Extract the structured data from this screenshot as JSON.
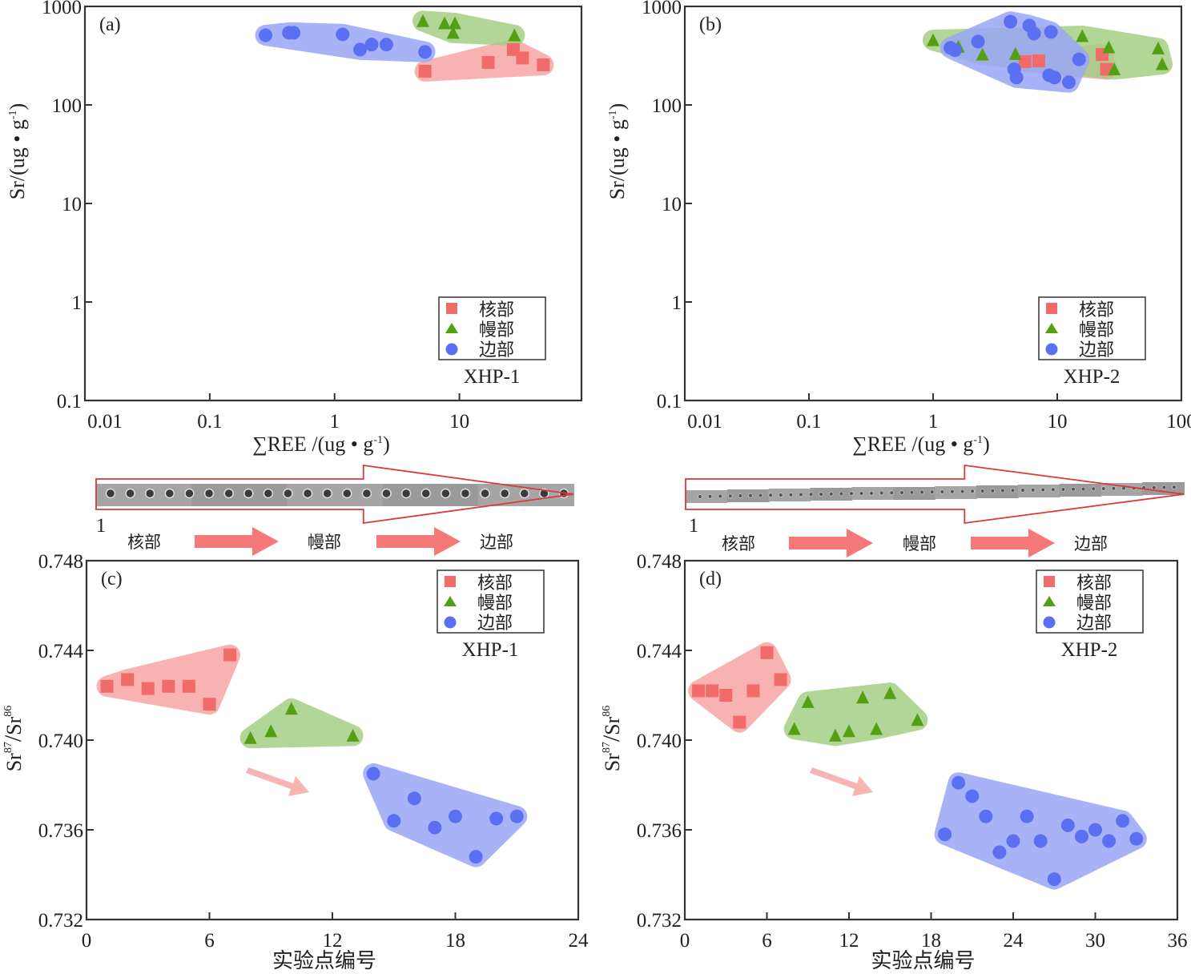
{
  "figure": {
    "zone_labels": [
      "核部",
      "幔部",
      "边部"
    ],
    "strip_start_label": "1"
  },
  "colors": {
    "core": "#f26b6b",
    "core_fill": "#f7a5a5",
    "mantle": "#55a012",
    "mantle_fill": "#a4cf85",
    "rim": "#5b6ff2",
    "rim_fill": "#9aa6f6",
    "arrow": "#f47878",
    "trend_arrow": "#f8b3b3",
    "strip_outline": "#d83a3a"
  },
  "chart_data": [
    {
      "id": "a",
      "type": "scatter",
      "panel_label": "(a)",
      "sample": "XHP-1",
      "xlabel": "∑REE /(ug • g⁻¹)",
      "ylabel": "Sr/(ug • g⁻¹)",
      "xscale": "log",
      "yscale": "log",
      "xlim": [
        0.01,
        95
      ],
      "ylim": [
        0.1,
        1000
      ],
      "xticks": [
        "0.01",
        "0.1",
        "1",
        "10"
      ],
      "yticks": [
        "0.1",
        "1",
        "10",
        "100",
        "1000"
      ],
      "legend": {
        "position": "bottom-right",
        "entries": [
          "核部",
          "幔部",
          "边部"
        ]
      },
      "series": [
        {
          "name": "核部",
          "marker": "square",
          "x": [
            5.3,
            17,
            27,
            32,
            47
          ],
          "y": [
            220,
            270,
            365,
            300,
            255
          ]
        },
        {
          "name": "幔部",
          "marker": "triangle",
          "x": [
            5.1,
            7.6,
            9.2,
            8.9,
            27.6
          ],
          "y": [
            710,
            675,
            675,
            540,
            510
          ]
        },
        {
          "name": "边部",
          "marker": "circle",
          "x": [
            0.28,
            0.43,
            0.47,
            1.16,
            1.6,
            1.98,
            2.6,
            5.3
          ],
          "y": [
            510,
            540,
            540,
            520,
            365,
            410,
            410,
            345
          ]
        }
      ]
    },
    {
      "id": "b",
      "type": "scatter",
      "panel_label": "(b)",
      "sample": "XHP-2",
      "xlabel": "∑REE /(ug • g⁻¹)",
      "ylabel": "Sr/(ug • g⁻¹)",
      "xscale": "log",
      "yscale": "log",
      "xlim": [
        0.01,
        100
      ],
      "ylim": [
        0.1,
        1000
      ],
      "xticks": [
        "0.01",
        "0.1",
        "1",
        "10",
        "100"
      ],
      "yticks": [
        "0.1",
        "1",
        "10",
        "100",
        "1000"
      ],
      "legend": {
        "position": "bottom-right",
        "entries": [
          "核部",
          "幔部",
          "边部"
        ]
      },
      "series": [
        {
          "name": "核部",
          "marker": "square",
          "x": [
            5.5,
            7.1,
            23,
            25
          ],
          "y": [
            275,
            280,
            325,
            230
          ]
        },
        {
          "name": "幔部",
          "marker": "triangle",
          "x": [
            1.0,
            1.6,
            2.5,
            4.6,
            15.9,
            26,
            28.8,
            65,
            70
          ],
          "y": [
            455,
            390,
            325,
            330,
            500,
            385,
            230,
            375,
            260
          ]
        },
        {
          "name": "边部",
          "marker": "circle",
          "x": [
            1.38,
            1.5,
            2.3,
            4.2,
            4.5,
            4.7,
            5.95,
            6.5,
            8.9,
            8.6,
            9.5,
            12.4,
            15
          ],
          "y": [
            380,
            360,
            440,
            700,
            230,
            190,
            640,
            530,
            550,
            200,
            190,
            170,
            290
          ]
        }
      ]
    },
    {
      "id": "c",
      "type": "scatter",
      "panel_label": "(c)",
      "sample": "XHP-1",
      "xlabel": "实验点编号",
      "ylabel": "Sr87/Sr86",
      "xscale": "linear",
      "yscale": "linear",
      "xlim": [
        0,
        24
      ],
      "ylim": [
        0.732,
        0.748
      ],
      "xticks": [
        "0",
        "6",
        "12",
        "18",
        "24"
      ],
      "yticks": [
        "0.732",
        "0.736",
        "0.740",
        "0.744",
        "0.748"
      ],
      "legend": {
        "position": "top-right",
        "entries": [
          "核部",
          "幔部",
          "边部"
        ]
      },
      "series": [
        {
          "name": "核部",
          "marker": "square",
          "x": [
            1,
            2,
            3,
            4,
            5,
            6,
            7
          ],
          "y": [
            0.7424,
            0.7427,
            0.7423,
            0.7424,
            0.7424,
            0.7416,
            0.7438
          ]
        },
        {
          "name": "幔部",
          "marker": "triangle",
          "x": [
            8,
            9,
            10,
            13
          ],
          "y": [
            0.7401,
            0.7404,
            0.7414,
            0.7402
          ]
        },
        {
          "name": "边部",
          "marker": "circle",
          "x": [
            14,
            15,
            16,
            17,
            18,
            19,
            20,
            21
          ],
          "y": [
            0.7385,
            0.7364,
            0.7374,
            0.7361,
            0.7366,
            0.7348,
            0.7365,
            0.7366
          ]
        }
      ]
    },
    {
      "id": "d",
      "type": "scatter",
      "panel_label": "(d)",
      "sample": "XHP-2",
      "xlabel": "实验点编号",
      "ylabel": "Sr87/Sr86",
      "xscale": "linear",
      "yscale": "linear",
      "xlim": [
        0,
        36
      ],
      "ylim": [
        0.732,
        0.748
      ],
      "xticks": [
        "0",
        "6",
        "12",
        "18",
        "24",
        "30",
        "36"
      ],
      "yticks": [
        "0.732",
        "0.736",
        "0.740",
        "0.744",
        "0.748"
      ],
      "legend": {
        "position": "top-right",
        "entries": [
          "核部",
          "幔部",
          "边部"
        ]
      },
      "series": [
        {
          "name": "核部",
          "marker": "square",
          "x": [
            1,
            2,
            3,
            4,
            5,
            6,
            7
          ],
          "y": [
            0.7422,
            0.7422,
            0.742,
            0.7408,
            0.7422,
            0.7439,
            0.7427
          ]
        },
        {
          "name": "幔部",
          "marker": "triangle",
          "x": [
            8,
            9,
            11,
            12,
            13,
            14,
            15,
            17
          ],
          "y": [
            0.7405,
            0.7417,
            0.7402,
            0.7404,
            0.7419,
            0.7405,
            0.7421,
            0.7409
          ]
        },
        {
          "name": "边部",
          "marker": "circle",
          "x": [
            19,
            20,
            21,
            22,
            23,
            24,
            25,
            26,
            27,
            28,
            29,
            30,
            31,
            32,
            33
          ],
          "y": [
            0.7358,
            0.7381,
            0.7375,
            0.7366,
            0.735,
            0.7355,
            0.7366,
            0.7355,
            0.7338,
            0.7362,
            0.7357,
            0.736,
            0.7355,
            0.7364,
            0.7356
          ]
        }
      ]
    }
  ]
}
